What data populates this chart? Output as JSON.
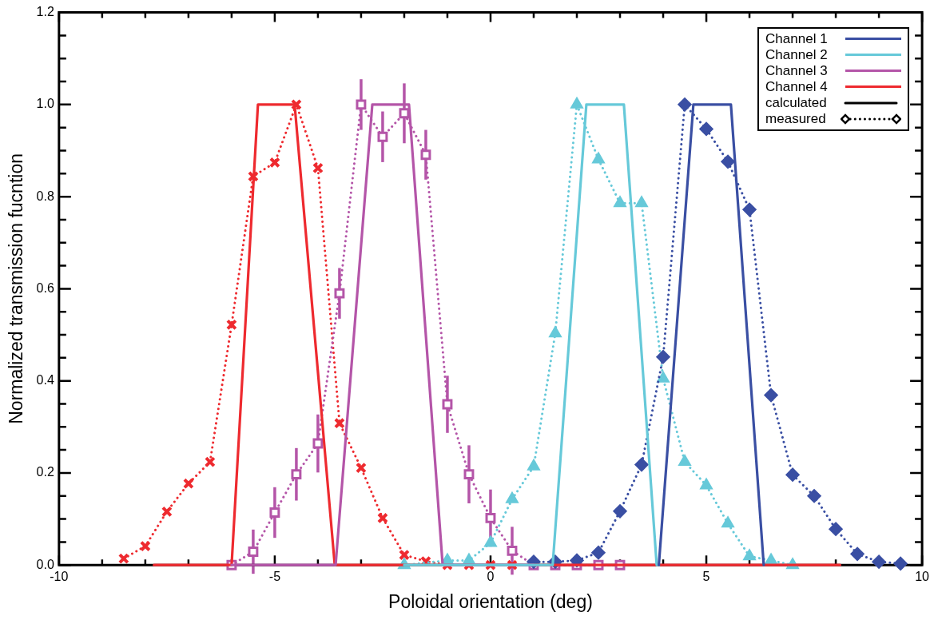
{
  "chart_data": {
    "type": "line",
    "xlabel": "Poloidal orientation (deg)",
    "ylabel": "Normalized transmission fucntion",
    "xlim": [
      -10,
      10
    ],
    "xticks": [
      -10,
      {
        "value": -9,
        "label": null
      },
      {
        "value": -8,
        "label": null
      },
      {
        "value": -7,
        "label": null
      },
      {
        "value": -6,
        "label": null
      },
      -5,
      {
        "value": -4,
        "label": null
      },
      {
        "value": -3,
        "label": null
      },
      {
        "value": -2,
        "label": null
      },
      {
        "value": -1,
        "label": null
      },
      0,
      {
        "value": 1,
        "label": null
      },
      {
        "value": 2,
        "label": null
      },
      {
        "value": 3,
        "label": null
      },
      {
        "value": 4,
        "label": null
      },
      5,
      {
        "value": 6,
        "label": null
      },
      {
        "value": 7,
        "label": null
      },
      {
        "value": 8,
        "label": null
      },
      {
        "value": 9,
        "label": null
      },
      10
    ],
    "ylim": [
      0,
      1.2
    ],
    "yticks": [
      {
        "value": 0,
        "label": "0.0"
      },
      {
        "value": 0.05,
        "label": null
      },
      {
        "value": 0.1,
        "label": null
      },
      {
        "value": 0.15,
        "label": null
      },
      {
        "value": 0.2,
        "label": "0.2"
      },
      {
        "value": 0.25,
        "label": null
      },
      {
        "value": 0.3,
        "label": null
      },
      {
        "value": 0.35,
        "label": null
      },
      {
        "value": 0.4,
        "label": "0.4"
      },
      {
        "value": 0.45,
        "label": null
      },
      {
        "value": 0.5,
        "label": null
      },
      {
        "value": 0.55,
        "label": null
      },
      {
        "value": 0.6,
        "label": "0.6"
      },
      {
        "value": 0.65,
        "label": null
      },
      {
        "value": 0.7,
        "label": null
      },
      {
        "value": 0.75,
        "label": null
      },
      {
        "value": 0.8,
        "label": "0.8"
      },
      {
        "value": 0.85,
        "label": null
      },
      {
        "value": 0.9,
        "label": null
      },
      {
        "value": 0.95,
        "label": null
      },
      {
        "value": 1,
        "label": "1.0"
      },
      {
        "value": 1.05,
        "label": null
      },
      {
        "value": 1.1,
        "label": null
      },
      {
        "value": 1.15,
        "label": null
      },
      {
        "value": 1.2,
        "label": "1.2"
      }
    ],
    "grid": false,
    "legend": "top right",
    "annotations": [
      "calculated",
      "measured"
    ],
    "series": [
      {
        "name": "Channel 1",
        "color": "#3a4fa3",
        "line_style": "solid",
        "marker": "none",
        "x": [
          3.9,
          4.7,
          5.57,
          6.33
        ],
        "values": [
          0,
          1,
          1,
          0
        ]
      },
      {
        "name": "Channel 2",
        "color": "#66c9d9",
        "line_style": "solid",
        "marker": "none",
        "x": [
          -2,
          1.44,
          2.22,
          3.09,
          3.85,
          3.9
        ],
        "values": [
          0,
          0,
          1,
          1,
          0,
          0
        ]
      },
      {
        "name": "Channel 3",
        "color": "#b455a8",
        "line_style": "solid",
        "marker": "none",
        "x": [
          -6,
          -3.59,
          -2.74,
          -1.89,
          -1.11,
          1
        ],
        "values": [
          0,
          0,
          1,
          1,
          0,
          0
        ]
      },
      {
        "name": "Channel 4",
        "color": "#ee2a2f",
        "line_style": "solid",
        "marker": "none",
        "x": [
          -7.8,
          -6,
          -5.39,
          -4.54,
          -3.61,
          8.1
        ],
        "values": [
          0,
          0,
          1,
          1,
          0,
          0
        ]
      },
      {
        "color": "#3a4fa3",
        "line_style": "dotted",
        "marker": "diamond",
        "x": [
          1,
          1.5,
          2,
          2.5,
          3,
          3.5,
          4,
          4.5,
          5,
          5.5,
          6,
          6.5,
          7,
          7.5,
          8,
          8.5,
          9,
          9.5
        ],
        "values": [
          0.007,
          0.007,
          0.01,
          0.027,
          0.117,
          0.218,
          0.452,
          1,
          0.947,
          0.876,
          0.772,
          0.369,
          0.196,
          0.15,
          0.078,
          0.024,
          0.007,
          0.003
        ]
      },
      {
        "color": "#66c9d9",
        "line_style": "dotted",
        "marker": "triangle",
        "x": [
          -2,
          -1,
          -0.5,
          0,
          0.5,
          1,
          1.5,
          2,
          2.5,
          3,
          3.5,
          4,
          4.5,
          5,
          5.5,
          6,
          6.5,
          7
        ],
        "values": [
          0,
          0.01,
          0.01,
          0.048,
          0.143,
          0.214,
          0.503,
          1,
          0.881,
          0.786,
          0.786,
          0.405,
          0.224,
          0.173,
          0.09,
          0.019,
          0.01,
          0
        ]
      },
      {
        "color": "#b455a8",
        "line_style": "dotted",
        "marker": "square",
        "x": [
          -6,
          -5.5,
          -5,
          -4.5,
          -4,
          -3.5,
          -3,
          -2.5,
          -2,
          -1.5,
          -1,
          -0.5,
          0,
          0.5,
          1,
          1.5,
          2,
          2.5,
          3
        ],
        "values": [
          0,
          0.029,
          0.114,
          0.197,
          0.264,
          0.59,
          1,
          0.93,
          0.981,
          0.891,
          0.349,
          0.197,
          0.102,
          0.031,
          0,
          0,
          0,
          0,
          0
        ],
        "errors": [
          null,
          0.048,
          0.055,
          0.057,
          0.063,
          0.055,
          0.055,
          0.055,
          0.065,
          0.054,
          0.062,
          0.063,
          0.062,
          0.052,
          null,
          null,
          null,
          null,
          null
        ]
      },
      {
        "color": "#ee2a2f",
        "line_style": "dotted",
        "marker": "cross",
        "x": [
          -8.5,
          -8,
          -7.5,
          -7,
          -6.5,
          -6,
          -5.5,
          -5,
          -4.5,
          -4,
          -3.5,
          -3,
          -2.5,
          -2,
          -1.5,
          -1,
          -0.5,
          0,
          0.5
        ],
        "values": [
          0.014,
          0.041,
          0.116,
          0.177,
          0.224,
          0.522,
          0.844,
          0.874,
          1,
          0.862,
          0.308,
          0.211,
          0.102,
          0.022,
          0.008,
          0,
          0,
          0,
          0
        ]
      }
    ]
  }
}
